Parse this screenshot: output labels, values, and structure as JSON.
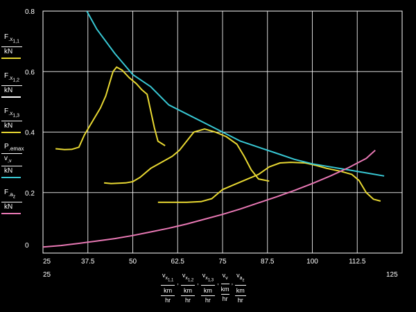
{
  "chart_data": {
    "type": "line",
    "xlim": [
      25,
      125
    ],
    "ylim": [
      0,
      0.8
    ],
    "x_ticks": [
      "25",
      "37.5",
      "50",
      "62.5",
      "75",
      "87.5",
      "100",
      "112.5",
      "125"
    ],
    "y_ticks": [
      "0",
      "0.2",
      "0.4",
      "0.6",
      "0.8"
    ],
    "x_range_labels": {
      "min": "25",
      "max": "125"
    },
    "grid": true,
    "colors": {
      "traction": "#e8d832",
      "available": "#38c8d4",
      "resistance": "#e878b4",
      "grid": "#ffffff",
      "axis": "#ffffff"
    },
    "ylabels": [
      {
        "num": "F",
        "sub": "x",
        "subsub": "1,1",
        "den": "kN",
        "swatch": "#e8d832"
      },
      {
        "num": "F",
        "sub": "x",
        "subsub": "1,2",
        "den": "kN",
        "swatch": "#ffffff"
      },
      {
        "num": "F",
        "sub": "x",
        "subsub": "1,3",
        "den": "kN",
        "swatch": "#e8d832"
      },
      {
        "num": "P",
        "sub": "emax",
        "den_top": "v",
        "den_top_sub": "v",
        "den": "kN",
        "swatch": "#38c8d4"
      },
      {
        "num": "F",
        "sub": "a",
        "subsub": "z",
        "den": "kN",
        "swatch": "#e878b4"
      }
    ],
    "xlabels": [
      {
        "num": "v",
        "sub": "x",
        "subsub": "1,1",
        "den_top": "km",
        "den": "hr"
      },
      {
        "num": "v",
        "sub": "x",
        "subsub": "1,2",
        "den_top": "km",
        "den": "hr"
      },
      {
        "num": "v",
        "sub": "x",
        "subsub": "1,3",
        "den_top": "km",
        "den": "hr"
      },
      {
        "num": "v",
        "sub": "v",
        "subsub": "",
        "den_top": "km",
        "den": "hr"
      },
      {
        "num": "v",
        "sub": "a",
        "subsub": "z",
        "den_top": "km",
        "den": "hr"
      }
    ],
    "series": [
      {
        "key": "fx11",
        "color": "#e8d832",
        "x": [
          28.5,
          31,
          33,
          35,
          36.5,
          39,
          41,
          42.5,
          43.5,
          44.5,
          45.5,
          47,
          49,
          51,
          52.5,
          54,
          55,
          56,
          57,
          59
        ],
        "y": [
          0.345,
          0.342,
          0.343,
          0.35,
          0.39,
          0.44,
          0.48,
          0.52,
          0.56,
          0.6,
          0.615,
          0.605,
          0.58,
          0.56,
          0.54,
          0.525,
          0.47,
          0.415,
          0.37,
          0.355
        ]
      },
      {
        "key": "fx12",
        "color": "#e8d832",
        "x": [
          42,
          44,
          46,
          48,
          50,
          52,
          55,
          58,
          61,
          63,
          65,
          67,
          70,
          73,
          76,
          79,
          81,
          83,
          85,
          88
        ],
        "y": [
          0.232,
          0.23,
          0.231,
          0.232,
          0.236,
          0.25,
          0.28,
          0.3,
          0.32,
          0.34,
          0.37,
          0.4,
          0.41,
          0.4,
          0.385,
          0.36,
          0.32,
          0.275,
          0.245,
          0.238
        ]
      },
      {
        "key": "fx13",
        "color": "#e8d832",
        "x": [
          57,
          61,
          65,
          69,
          72,
          75,
          78,
          82,
          85,
          88,
          91,
          94,
          98,
          101,
          104,
          108,
          111,
          113,
          115,
          117,
          119
        ],
        "y": [
          0.168,
          0.168,
          0.168,
          0.17,
          0.18,
          0.21,
          0.225,
          0.245,
          0.26,
          0.285,
          0.298,
          0.3,
          0.298,
          0.29,
          0.28,
          0.27,
          0.26,
          0.24,
          0.2,
          0.178,
          0.172
        ]
      },
      {
        "key": "pemax",
        "color": "#38c8d4",
        "x": [
          37.2,
          40,
          45,
          50,
          55,
          60,
          65,
          70,
          75,
          80,
          85,
          90,
          95,
          100,
          105,
          110,
          115,
          120
        ],
        "y": [
          0.8,
          0.74,
          0.66,
          0.59,
          0.55,
          0.49,
          0.46,
          0.43,
          0.4,
          0.37,
          0.35,
          0.33,
          0.31,
          0.295,
          0.285,
          0.275,
          0.265,
          0.255
        ]
      },
      {
        "key": "fa",
        "color": "#e878b4",
        "x": [
          25,
          30,
          35,
          40,
          45,
          50,
          55,
          60,
          65,
          70,
          75,
          80,
          85,
          90,
          95,
          100,
          105,
          110,
          115,
          117.5
        ],
        "y": [
          0.02,
          0.025,
          0.032,
          0.04,
          0.048,
          0.058,
          0.07,
          0.082,
          0.096,
          0.112,
          0.128,
          0.146,
          0.166,
          0.186,
          0.207,
          0.23,
          0.255,
          0.282,
          0.313,
          0.34
        ]
      }
    ]
  }
}
